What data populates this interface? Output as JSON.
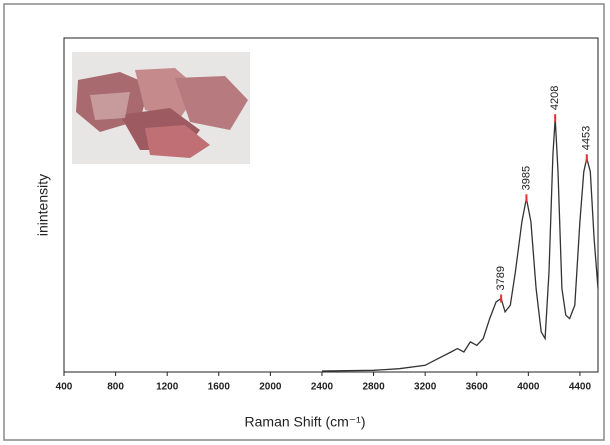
{
  "chart_data": {
    "type": "line",
    "xlabel": "Raman Shift (cm⁻¹)",
    "ylabel": "inintensity",
    "x": [
      2400,
      2800,
      3000,
      3200,
      3300,
      3400,
      3450,
      3500,
      3550,
      3600,
      3650,
      3700,
      3750,
      3789,
      3820,
      3860,
      3900,
      3950,
      3985,
      4020,
      4060,
      4100,
      4130,
      4160,
      4190,
      4208,
      4230,
      4260,
      4290,
      4320,
      4360,
      4400,
      4430,
      4453,
      4480,
      4510,
      4540
    ],
    "values": [
      0.3,
      0.5,
      1,
      2,
      4,
      6,
      7,
      6,
      9,
      8,
      10,
      16,
      21,
      22,
      18,
      20,
      30,
      45,
      52,
      45,
      25,
      12,
      10,
      30,
      65,
      76,
      60,
      25,
      17,
      16,
      20,
      45,
      60,
      64,
      60,
      40,
      25
    ],
    "color": "#333333",
    "peaks": [
      {
        "x": 3789,
        "y": 22
      },
      {
        "x": 3985,
        "y": 52
      },
      {
        "x": 4208,
        "y": 76
      },
      {
        "x": 4453,
        "y": 64
      }
    ],
    "peak_color": "#e03030",
    "xlim": [
      400,
      4540
    ],
    "ylim": [
      0,
      100
    ],
    "xticks": [
      400,
      800,
      1200,
      1600,
      2000,
      2400,
      2800,
      3200,
      3600,
      4000,
      4400
    ]
  }
}
